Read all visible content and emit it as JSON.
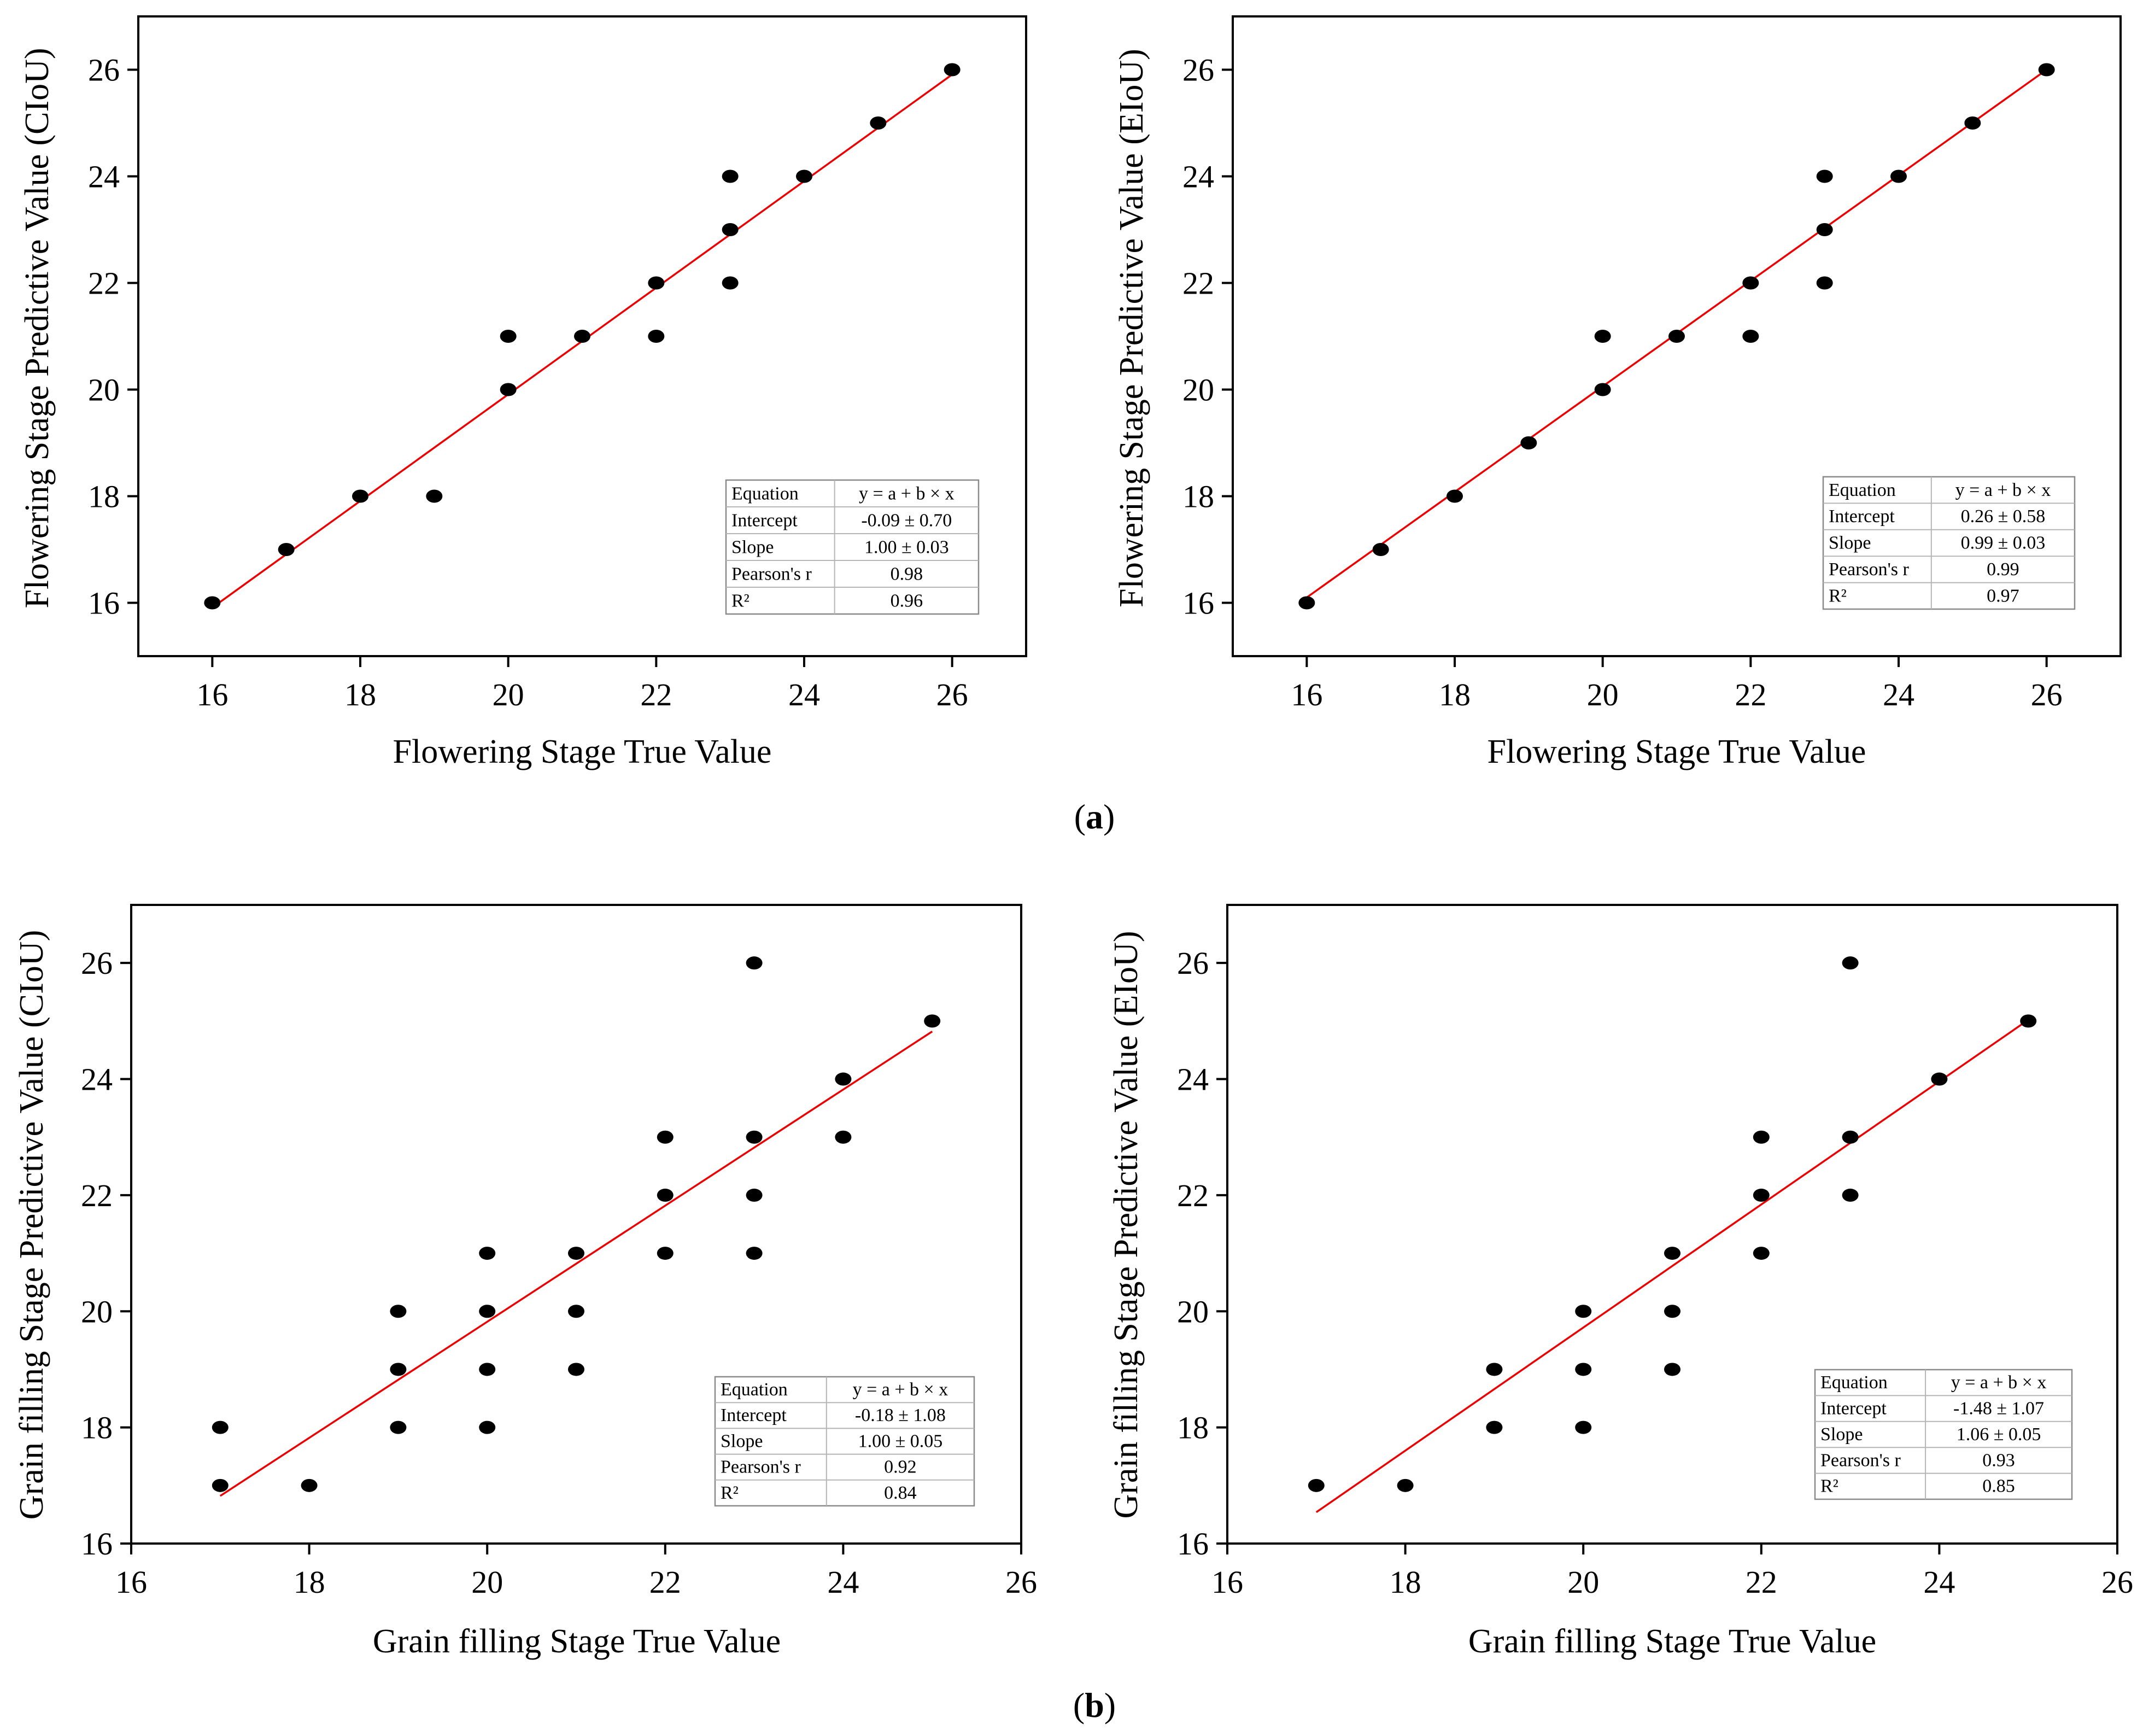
{
  "figure": {
    "caption_a": "a",
    "caption_b": "b"
  },
  "colors": {
    "fit_line": "#ee0000",
    "points": "#000000",
    "axes": "#000000"
  },
  "chart_data": [
    {
      "type": "scatter",
      "panel": "top-left",
      "xlabel": "Flowering Stage True Value",
      "ylabel": "Flowering Stage Predictive Value (CIoU)",
      "xlim": [
        15,
        27
      ],
      "ylim": [
        15,
        27
      ],
      "xticks": [
        16,
        18,
        20,
        22,
        24,
        26
      ],
      "yticks": [
        16,
        18,
        20,
        22,
        24,
        26
      ],
      "points": [
        [
          16,
          16
        ],
        [
          17,
          17
        ],
        [
          18,
          18
        ],
        [
          19,
          18
        ],
        [
          20,
          21
        ],
        [
          20,
          20
        ],
        [
          21,
          21
        ],
        [
          22,
          22
        ],
        [
          22,
          21
        ],
        [
          23,
          24
        ],
        [
          23,
          23
        ],
        [
          23,
          22
        ],
        [
          24,
          24
        ],
        [
          25,
          25
        ],
        [
          26,
          26
        ]
      ],
      "fit": {
        "intercept": -0.09,
        "slope": 1.0,
        "x_range": [
          16,
          26
        ]
      },
      "stats": [
        [
          "Equation",
          "y = a + b × x"
        ],
        [
          "Intercept",
          "-0.09 ± 0.70"
        ],
        [
          "Slope",
          "1.00 ± 0.03"
        ],
        [
          "Pearson's r",
          "0.98"
        ],
        [
          "R²",
          "0.96"
        ]
      ],
      "stats_position": "bottom-right"
    },
    {
      "type": "scatter",
      "panel": "top-right",
      "xlabel": "Flowering Stage True Value",
      "ylabel": "Flowering Stage Predictive Value (EIoU)",
      "xlim": [
        15,
        27
      ],
      "ylim": [
        15,
        27
      ],
      "xticks": [
        16,
        18,
        20,
        22,
        24,
        26
      ],
      "yticks": [
        16,
        18,
        20,
        22,
        24,
        26
      ],
      "points": [
        [
          16,
          16
        ],
        [
          17,
          17
        ],
        [
          18,
          18
        ],
        [
          19,
          19
        ],
        [
          20,
          21
        ],
        [
          20,
          20
        ],
        [
          21,
          21
        ],
        [
          22,
          22
        ],
        [
          22,
          21
        ],
        [
          23,
          24
        ],
        [
          23,
          23
        ],
        [
          23,
          22
        ],
        [
          24,
          24
        ],
        [
          25,
          25
        ],
        [
          26,
          26
        ]
      ],
      "fit": {
        "intercept": 0.26,
        "slope": 0.99,
        "x_range": [
          16,
          26
        ]
      },
      "stats": [
        [
          "Equation",
          "y = a + b × x"
        ],
        [
          "Intercept",
          "0.26 ± 0.58"
        ],
        [
          "Slope",
          "0.99 ± 0.03"
        ],
        [
          "Pearson's r",
          "0.99"
        ],
        [
          "R²",
          "0.97"
        ]
      ],
      "stats_position": "bottom-right"
    },
    {
      "type": "scatter",
      "panel": "bottom-left",
      "xlabel": "Grain filling Stage True Value",
      "ylabel": "Grain filling Stage Predictive Value (CIoU)",
      "xlim": [
        16,
        26
      ],
      "ylim": [
        16,
        27
      ],
      "xticks": [
        16,
        18,
        20,
        22,
        24,
        26
      ],
      "yticks": [
        16,
        18,
        20,
        22,
        24,
        26
      ],
      "points": [
        [
          17,
          18
        ],
        [
          17,
          17
        ],
        [
          18,
          17
        ],
        [
          19,
          20
        ],
        [
          19,
          19
        ],
        [
          19,
          18
        ],
        [
          20,
          21
        ],
        [
          20,
          20
        ],
        [
          20,
          19
        ],
        [
          20,
          18
        ],
        [
          21,
          21
        ],
        [
          21,
          20
        ],
        [
          21,
          19
        ],
        [
          22,
          23
        ],
        [
          22,
          22
        ],
        [
          22,
          21
        ],
        [
          23,
          26
        ],
        [
          23,
          23
        ],
        [
          23,
          22
        ],
        [
          23,
          21
        ],
        [
          24,
          24
        ],
        [
          24,
          23
        ],
        [
          25,
          25
        ]
      ],
      "fit": {
        "intercept": -0.18,
        "slope": 1.0,
        "x_range": [
          17,
          25
        ]
      },
      "stats": [
        [
          "Equation",
          "y = a + b × x"
        ],
        [
          "Intercept",
          "-0.18 ± 1.08"
        ],
        [
          "Slope",
          "1.00 ± 0.05"
        ],
        [
          "Pearson's r",
          "0.92"
        ],
        [
          "R²",
          "0.84"
        ]
      ],
      "stats_position": "bottom-right"
    },
    {
      "type": "scatter",
      "panel": "bottom-right",
      "xlabel": "Grain filling Stage True Value",
      "ylabel": "Grain filling Stage Predictive Value (EIoU)",
      "xlim": [
        16,
        26
      ],
      "ylim": [
        16,
        27
      ],
      "xticks": [
        16,
        18,
        20,
        22,
        24,
        26
      ],
      "yticks": [
        16,
        18,
        20,
        22,
        24,
        26
      ],
      "points": [
        [
          17,
          17
        ],
        [
          18,
          17
        ],
        [
          19,
          19
        ],
        [
          19,
          18
        ],
        [
          20,
          20
        ],
        [
          20,
          19
        ],
        [
          20,
          18
        ],
        [
          21,
          21
        ],
        [
          21,
          20
        ],
        [
          21,
          19
        ],
        [
          22,
          23
        ],
        [
          22,
          22
        ],
        [
          22,
          21
        ],
        [
          23,
          26
        ],
        [
          23,
          23
        ],
        [
          23,
          22
        ],
        [
          24,
          24
        ],
        [
          25,
          25
        ]
      ],
      "fit": {
        "intercept": -1.48,
        "slope": 1.06,
        "x_range": [
          17,
          25
        ]
      },
      "stats": [
        [
          "Equation",
          "y = a + b × x"
        ],
        [
          "Intercept",
          "-1.48 ± 1.07"
        ],
        [
          "Slope",
          "1.06 ± 0.05"
        ],
        [
          "Pearson's r",
          "0.93"
        ],
        [
          "R²",
          "0.85"
        ]
      ],
      "stats_position": "bottom-right"
    }
  ]
}
